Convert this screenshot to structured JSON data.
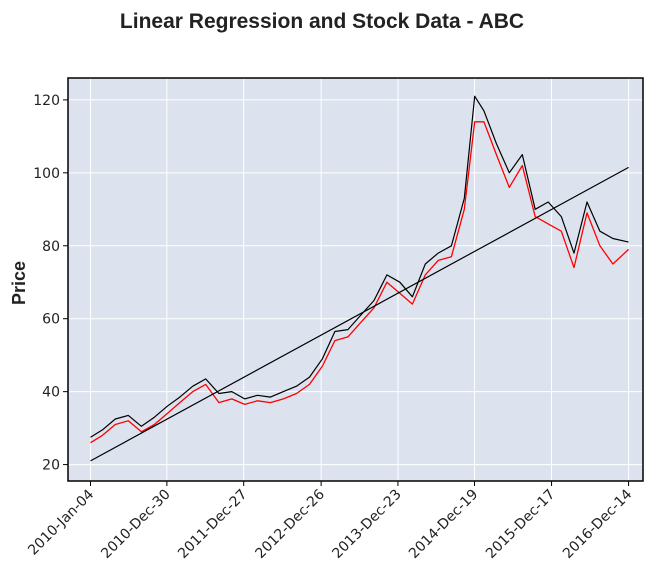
{
  "chart_data": {
    "type": "line",
    "title": "Linear Regression and Stock Data - ABC",
    "xlabel": "",
    "ylabel": "Price",
    "x_ticks": [
      "2010-Jan-04",
      "2010-Dec-30",
      "2011-Dec-27",
      "2012-Dec-26",
      "2013-Dec-23",
      "2014-Dec-19",
      "2015-Dec-17",
      "2016-Dec-14"
    ],
    "y_ticks": [
      20,
      40,
      60,
      80,
      100,
      120
    ],
    "xlim": [
      "2009-Sep-20",
      "2017-Feb-20"
    ],
    "ylim": [
      15.5,
      126
    ],
    "grid": true,
    "background_color": "#dde3ee",
    "series": [
      {
        "role": "high",
        "color": "#000000",
        "dates": [
          "2010-01-04",
          "2010-03-01",
          "2010-05-01",
          "2010-07-01",
          "2010-09-01",
          "2010-11-01",
          "2011-01-01",
          "2011-03-01",
          "2011-05-01",
          "2011-07-01",
          "2011-09-01",
          "2011-11-01",
          "2012-01-01",
          "2012-03-01",
          "2012-05-01",
          "2012-07-01",
          "2012-09-01",
          "2012-11-01",
          "2013-01-01",
          "2013-03-01",
          "2013-05-01",
          "2013-07-01",
          "2013-09-01",
          "2013-11-01",
          "2014-01-01",
          "2014-03-01",
          "2014-05-01",
          "2014-07-01",
          "2014-09-01",
          "2014-11-01",
          "2014-12-20",
          "2015-02-01",
          "2015-04-01",
          "2015-06-01",
          "2015-08-01",
          "2015-10-01",
          "2015-12-01",
          "2016-02-01",
          "2016-04-01",
          "2016-06-01",
          "2016-08-01",
          "2016-10-01",
          "2016-12-14"
        ],
        "values": [
          27.5,
          29.5,
          32.5,
          33.5,
          30.5,
          33,
          36,
          38.5,
          41.5,
          43.5,
          39.5,
          40,
          38,
          39,
          38.5,
          40,
          41.5,
          44,
          49,
          56.5,
          57,
          61,
          65,
          72,
          70,
          66,
          75,
          78,
          80,
          93,
          121,
          117,
          108,
          100,
          105,
          90,
          92,
          88,
          78,
          92,
          84,
          82,
          81
        ]
      },
      {
        "role": "close",
        "color": "#ff0000",
        "dates": [
          "2010-01-04",
          "2010-03-01",
          "2010-05-01",
          "2010-07-01",
          "2010-09-01",
          "2010-11-01",
          "2011-01-01",
          "2011-03-01",
          "2011-05-01",
          "2011-07-01",
          "2011-09-01",
          "2011-11-01",
          "2012-01-01",
          "2012-03-01",
          "2012-05-01",
          "2012-07-01",
          "2012-09-01",
          "2012-11-01",
          "2013-01-01",
          "2013-03-01",
          "2013-05-01",
          "2013-07-01",
          "2013-09-01",
          "2013-11-01",
          "2014-01-01",
          "2014-03-01",
          "2014-05-01",
          "2014-07-01",
          "2014-09-01",
          "2014-11-01",
          "2014-12-20",
          "2015-02-01",
          "2015-04-01",
          "2015-06-01",
          "2015-08-01",
          "2015-10-01",
          "2015-12-01",
          "2016-02-01",
          "2016-04-01",
          "2016-06-01",
          "2016-08-01",
          "2016-10-01",
          "2016-12-14"
        ],
        "values": [
          26,
          28,
          31,
          32,
          29,
          31,
          34,
          37,
          40,
          42,
          37,
          38,
          36.5,
          37.5,
          37,
          38,
          39.5,
          42,
          47,
          54,
          55,
          59,
          63,
          70,
          67,
          64,
          72,
          76,
          77,
          90,
          114,
          114,
          105,
          96,
          102,
          88,
          86,
          84,
          74,
          89,
          80,
          75,
          79
        ]
      },
      {
        "role": "regression",
        "color": "#000000",
        "dates": [
          "2010-01-04",
          "2016-12-14"
        ],
        "values": [
          21,
          101.5
        ]
      }
    ]
  }
}
